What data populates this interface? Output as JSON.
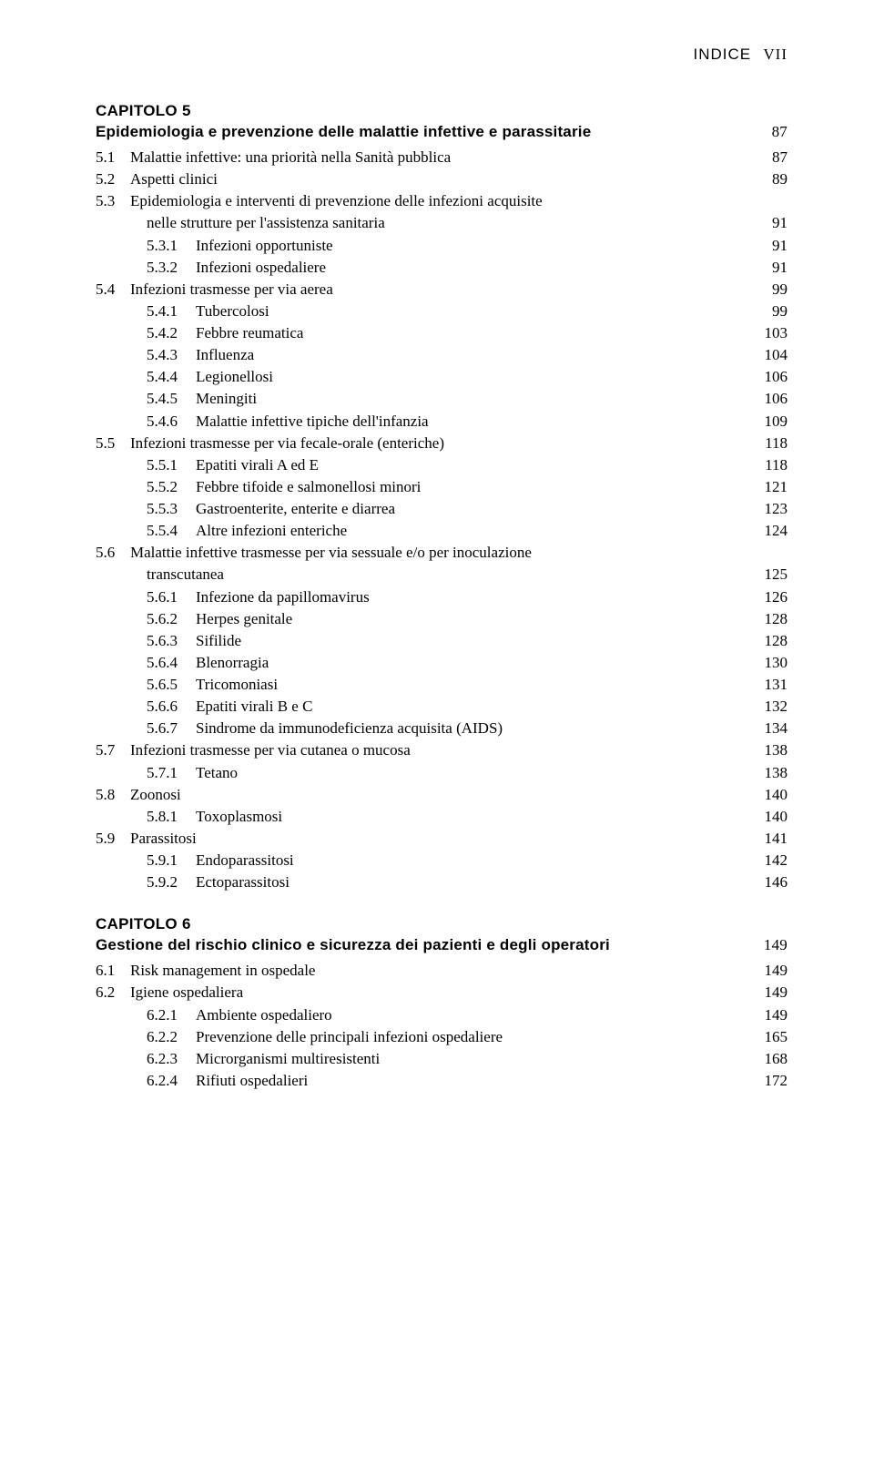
{
  "header": {
    "label": "INDICE",
    "page": "VII"
  },
  "chapter5": {
    "heading": "CAPITOLO 5",
    "title": "Epidemiologia e prevenzione delle malattie infettive e parassitarie",
    "title_page": "87",
    "entries": [
      {
        "lvl": 1,
        "num": "5.1",
        "text": "Malattie infettive: una priorità nella Sanità pubblica",
        "page": "87"
      },
      {
        "lvl": 1,
        "num": "5.2",
        "text": "Aspetti clinici",
        "page": "89"
      },
      {
        "lvl": 1,
        "num": "5.3",
        "text": "Epidemiologia e interventi di prevenzione delle infezioni acquisite",
        "wrap": "nelle strutture per l'assistenza sanitaria",
        "page": "91"
      },
      {
        "lvl": 2,
        "num": "5.3.1",
        "text": "Infezioni opportuniste",
        "page": "91"
      },
      {
        "lvl": 2,
        "num": "5.3.2",
        "text": "Infezioni ospedaliere",
        "page": "91"
      },
      {
        "lvl": 1,
        "num": "5.4",
        "text": "Infezioni trasmesse per via aerea",
        "page": "99"
      },
      {
        "lvl": 2,
        "num": "5.4.1",
        "text": "Tubercolosi",
        "page": "99"
      },
      {
        "lvl": 2,
        "num": "5.4.2",
        "text": "Febbre reumatica",
        "page": "103"
      },
      {
        "lvl": 2,
        "num": "5.4.3",
        "text": "Influenza",
        "page": "104"
      },
      {
        "lvl": 2,
        "num": "5.4.4",
        "text": "Legionellosi",
        "page": "106"
      },
      {
        "lvl": 2,
        "num": "5.4.5",
        "text": "Meningiti",
        "page": "106"
      },
      {
        "lvl": 2,
        "num": "5.4.6",
        "text": "Malattie infettive tipiche dell'infanzia",
        "page": "109"
      },
      {
        "lvl": 1,
        "num": "5.5",
        "text": "Infezioni trasmesse per via fecale-orale (enteriche)",
        "page": "118"
      },
      {
        "lvl": 2,
        "num": "5.5.1",
        "text": "Epatiti virali A ed E",
        "page": "118"
      },
      {
        "lvl": 2,
        "num": "5.5.2",
        "text": "Febbre tifoide e salmonellosi minori",
        "page": "121"
      },
      {
        "lvl": 2,
        "num": "5.5.3",
        "text": "Gastroenterite, enterite e diarrea",
        "page": "123"
      },
      {
        "lvl": 2,
        "num": "5.5.4",
        "text": "Altre infezioni enteriche",
        "page": "124"
      },
      {
        "lvl": 1,
        "num": "5.6",
        "text": "Malattie infettive trasmesse per via sessuale e/o per inoculazione",
        "wrap": "transcutanea",
        "page": "125"
      },
      {
        "lvl": 2,
        "num": "5.6.1",
        "text": "Infezione da papillomavirus",
        "page": "126"
      },
      {
        "lvl": 2,
        "num": "5.6.2",
        "text": "Herpes genitale",
        "page": "128"
      },
      {
        "lvl": 2,
        "num": "5.6.3",
        "text": "Sifilide",
        "page": "128"
      },
      {
        "lvl": 2,
        "num": "5.6.4",
        "text": "Blenorragia",
        "page": "130"
      },
      {
        "lvl": 2,
        "num": "5.6.5",
        "text": "Tricomoniasi",
        "page": "131"
      },
      {
        "lvl": 2,
        "num": "5.6.6",
        "text": "Epatiti virali B e C",
        "page": "132"
      },
      {
        "lvl": 2,
        "num": "5.6.7",
        "text": "Sindrome da immunodeficienza acquisita (AIDS)",
        "page": "134"
      },
      {
        "lvl": 1,
        "num": "5.7",
        "text": "Infezioni trasmesse per via cutanea o mucosa",
        "page": "138"
      },
      {
        "lvl": 2,
        "num": "5.7.1",
        "text": "Tetano",
        "page": "138"
      },
      {
        "lvl": 1,
        "num": "5.8",
        "text": "Zoonosi",
        "page": "140"
      },
      {
        "lvl": 2,
        "num": "5.8.1",
        "text": "Toxoplasmosi",
        "page": "140"
      },
      {
        "lvl": 1,
        "num": "5.9",
        "text": "Parassitosi",
        "page": "141"
      },
      {
        "lvl": 2,
        "num": "5.9.1",
        "text": "Endoparassitosi",
        "page": "142"
      },
      {
        "lvl": 2,
        "num": "5.9.2",
        "text": "Ectoparassitosi",
        "page": "146"
      }
    ]
  },
  "chapter6": {
    "heading": "CAPITOLO 6",
    "title": "Gestione del rischio clinico e sicurezza dei pazienti e degli operatori",
    "title_page": "149",
    "entries": [
      {
        "lvl": 1,
        "num": "6.1",
        "text": "Risk management in ospedale",
        "page": "149"
      },
      {
        "lvl": 1,
        "num": "6.2",
        "text": "Igiene ospedaliera",
        "page": "149"
      },
      {
        "lvl": 2,
        "num": "6.2.1",
        "text": "Ambiente ospedaliero",
        "page": "149"
      },
      {
        "lvl": 2,
        "num": "6.2.2",
        "text": "Prevenzione delle principali infezioni ospedaliere",
        "page": "165"
      },
      {
        "lvl": 2,
        "num": "6.2.3",
        "text": "Microrganismi multiresistenti",
        "page": "168"
      },
      {
        "lvl": 2,
        "num": "6.2.4",
        "text": "Rifiuti ospedalieri",
        "page": "172"
      }
    ]
  }
}
